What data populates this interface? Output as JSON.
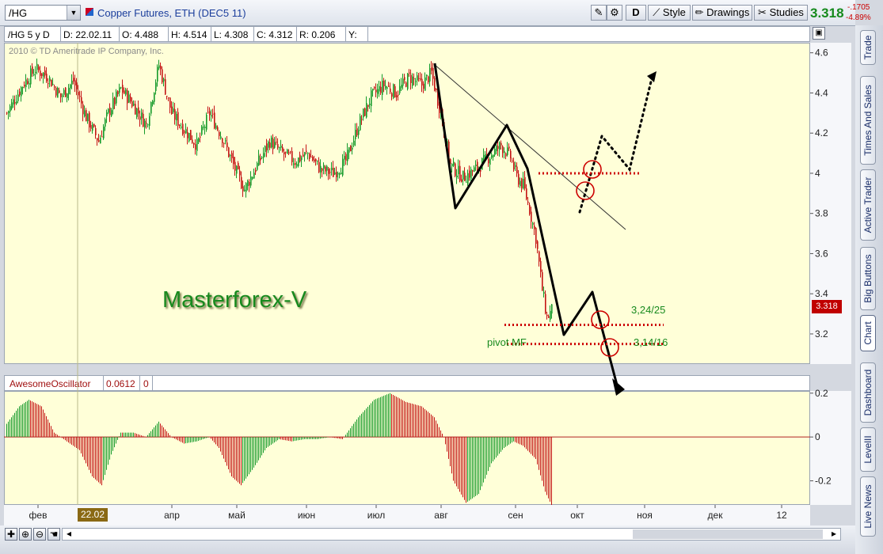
{
  "toolbar": {
    "symbol": "/HG",
    "title": "Copper Futures, ETH (DEC5 11)",
    "d_label": "D",
    "style_label": "Style",
    "drawings_label": "Drawings",
    "studies_label": "Studies",
    "last_price": "3.318",
    "change_abs": "-.1705",
    "change_pct": "-4.89%"
  },
  "right_tabs": [
    "Trade",
    "Times And Sales",
    "Active Trader",
    "Big Buttons",
    "Chart",
    "Dashboard",
    "LevelII",
    "Live News"
  ],
  "legend": {
    "symbol_period": "/HG 5 y D",
    "date": "D: 22.02.11",
    "open": "O: 4.488",
    "high": "H: 4.514",
    "low": "L: 4.308",
    "close": "C: 4.312",
    "range": "R: 0.206",
    "y": "Y:"
  },
  "copyright": "2010 © TD Ameritrade IP Company, Inc.",
  "watermark": "Masterforex-V",
  "annotations": {
    "level_a": "3,24/25",
    "level_b": "3,14/16",
    "pivot": "pivot MF"
  },
  "current_price_tag": "3.318",
  "cursor_date_tag": "22.02",
  "oscillator": {
    "name": "AwesomeOscillator",
    "value": "0.0612",
    "zero": "0"
  },
  "colors": {
    "up": "#159a2a",
    "down": "#c41414",
    "pane_bg": "#ffffd8",
    "price_tag": "#c00000",
    "watermark": "#188a1e",
    "dotted_level": "#cc0000"
  },
  "chart_data": [
    {
      "type": "candlestick",
      "title": "Copper Futures, ETH (DEC5 11)",
      "ylim": [
        3.05,
        4.65
      ],
      "y_ticks": [
        3.2,
        3.4,
        3.6,
        3.8,
        4.0,
        4.2,
        4.4,
        4.6
      ],
      "x_ticks": [
        "фев",
        "апр",
        "май",
        "июн",
        "июл",
        "авг",
        "сен",
        "окт",
        "ноя",
        "дек",
        "12"
      ],
      "anchor_closes": [
        [
          0,
          4.3
        ],
        [
          10,
          4.44
        ],
        [
          18,
          4.52
        ],
        [
          26,
          4.48
        ],
        [
          34,
          4.38
        ],
        [
          42,
          4.46
        ],
        [
          50,
          4.28
        ],
        [
          58,
          4.16
        ],
        [
          64,
          4.3
        ],
        [
          72,
          4.42
        ],
        [
          80,
          4.34
        ],
        [
          88,
          4.24
        ],
        [
          96,
          4.54
        ],
        [
          104,
          4.3
        ],
        [
          112,
          4.22
        ],
        [
          120,
          4.14
        ],
        [
          128,
          4.3
        ],
        [
          136,
          4.18
        ],
        [
          144,
          4.02
        ],
        [
          150,
          3.92
        ],
        [
          158,
          4.04
        ],
        [
          166,
          4.16
        ],
        [
          174,
          4.1
        ],
        [
          182,
          4.06
        ],
        [
          190,
          4.1
        ],
        [
          198,
          4.02
        ],
        [
          206,
          4.0
        ],
        [
          214,
          4.06
        ],
        [
          222,
          4.24
        ],
        [
          230,
          4.38
        ],
        [
          238,
          4.44
        ],
        [
          246,
          4.4
        ],
        [
          254,
          4.48
        ],
        [
          262,
          4.44
        ],
        [
          268,
          4.5
        ],
        [
          274,
          4.3
        ],
        [
          280,
          4.04
        ],
        [
          288,
          3.98
        ],
        [
          296,
          4.02
        ],
        [
          304,
          4.08
        ],
        [
          312,
          4.14
        ],
        [
          318,
          4.08
        ],
        [
          322,
          3.98
        ],
        [
          326,
          3.94
        ],
        [
          330,
          3.82
        ],
        [
          334,
          3.68
        ],
        [
          338,
          3.42
        ],
        [
          341,
          3.28
        ],
        [
          344,
          3.318
        ]
      ],
      "levels": [
        {
          "label": "3,24/25",
          "value": 3.245
        },
        {
          "label": "3,14/16",
          "value": 3.15
        },
        {
          "label": "",
          "value": 4.0
        }
      ]
    },
    {
      "type": "bar",
      "title": "AwesomeOscillator",
      "ylim": [
        -0.31,
        0.21
      ],
      "y_ticks": [
        -0.2,
        0,
        0.2
      ],
      "anchor_values": [
        [
          0,
          0.06
        ],
        [
          8,
          0.14
        ],
        [
          14,
          0.17
        ],
        [
          22,
          0.14
        ],
        [
          30,
          0.02
        ],
        [
          38,
          -0.02
        ],
        [
          46,
          -0.06
        ],
        [
          54,
          -0.18
        ],
        [
          60,
          -0.22
        ],
        [
          66,
          -0.08
        ],
        [
          72,
          0.02
        ],
        [
          80,
          0.02
        ],
        [
          88,
          0.0
        ],
        [
          96,
          0.07
        ],
        [
          104,
          0.0
        ],
        [
          112,
          -0.03
        ],
        [
          120,
          -0.02
        ],
        [
          128,
          0.0
        ],
        [
          134,
          -0.05
        ],
        [
          142,
          -0.18
        ],
        [
          148,
          -0.22
        ],
        [
          156,
          -0.14
        ],
        [
          164,
          -0.05
        ],
        [
          172,
          -0.01
        ],
        [
          180,
          -0.02
        ],
        [
          188,
          -0.01
        ],
        [
          196,
          -0.01
        ],
        [
          204,
          0.0
        ],
        [
          212,
          -0.01
        ],
        [
          222,
          0.09
        ],
        [
          232,
          0.17
        ],
        [
          242,
          0.2
        ],
        [
          252,
          0.16
        ],
        [
          262,
          0.14
        ],
        [
          270,
          0.09
        ],
        [
          276,
          0.0
        ],
        [
          282,
          -0.2
        ],
        [
          290,
          -0.3
        ],
        [
          298,
          -0.26
        ],
        [
          306,
          -0.12
        ],
        [
          314,
          -0.05
        ],
        [
          320,
          -0.02
        ],
        [
          326,
          -0.04
        ],
        [
          334,
          -0.1
        ],
        [
          340,
          -0.25
        ],
        [
          344,
          -0.31
        ]
      ]
    }
  ]
}
